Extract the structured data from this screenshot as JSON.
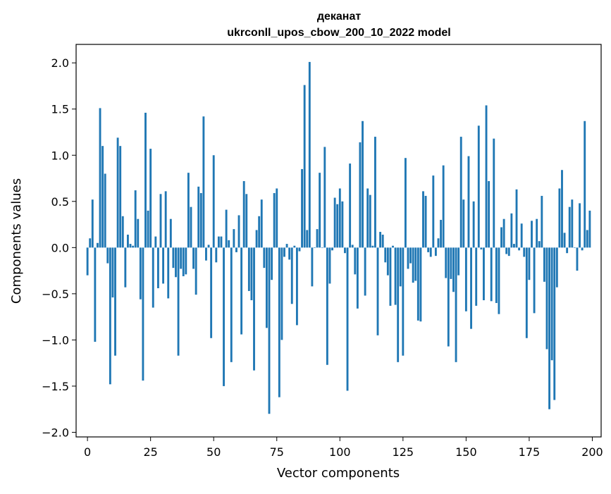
{
  "chart_data": {
    "type": "bar",
    "title": "деканат",
    "subtitle": "ukrconll_upos_cbow_200_10_2022 model",
    "xlabel": "Vector components",
    "ylabel": "Components values",
    "xlim": [
      -4.5,
      203.5
    ],
    "ylim": [
      -2.05,
      2.2
    ],
    "x_ticks": [
      0,
      25,
      50,
      75,
      100,
      125,
      150,
      175,
      200
    ],
    "x_tick_labels": [
      "0",
      "25",
      "50",
      "75",
      "100",
      "125",
      "150",
      "175",
      "200"
    ],
    "y_ticks": [
      -2.0,
      -1.5,
      -1.0,
      -0.5,
      0.0,
      0.5,
      1.0,
      1.5,
      2.0
    ],
    "y_tick_labels": [
      "−2.0",
      "−1.5",
      "−1.0",
      "−0.5",
      "0.0",
      "0.5",
      "1.0",
      "1.5",
      "2.0"
    ],
    "grid": false,
    "bar_color": "#1f77b4",
    "x": [
      0,
      1,
      2,
      3,
      4,
      5,
      6,
      7,
      8,
      9,
      10,
      11,
      12,
      13,
      14,
      15,
      16,
      17,
      18,
      19,
      20,
      21,
      22,
      23,
      24,
      25,
      26,
      27,
      28,
      29,
      30,
      31,
      32,
      33,
      34,
      35,
      36,
      37,
      38,
      39,
      40,
      41,
      42,
      43,
      44,
      45,
      46,
      47,
      48,
      49,
      50,
      51,
      52,
      53,
      54,
      55,
      56,
      57,
      58,
      59,
      60,
      61,
      62,
      63,
      64,
      65,
      66,
      67,
      68,
      69,
      70,
      71,
      72,
      73,
      74,
      75,
      76,
      77,
      78,
      79,
      80,
      81,
      82,
      83,
      84,
      85,
      86,
      87,
      88,
      89,
      90,
      91,
      92,
      93,
      94,
      95,
      96,
      97,
      98,
      99,
      100,
      101,
      102,
      103,
      104,
      105,
      106,
      107,
      108,
      109,
      110,
      111,
      112,
      113,
      114,
      115,
      116,
      117,
      118,
      119,
      120,
      121,
      122,
      123,
      124,
      125,
      126,
      127,
      128,
      129,
      130,
      131,
      132,
      133,
      134,
      135,
      136,
      137,
      138,
      139,
      140,
      141,
      142,
      143,
      144,
      145,
      146,
      147,
      148,
      149,
      150,
      151,
      152,
      153,
      154,
      155,
      156,
      157,
      158,
      159,
      160,
      161,
      162,
      163,
      164,
      165,
      166,
      167,
      168,
      169,
      170,
      171,
      172,
      173,
      174,
      175,
      176,
      177,
      178,
      179,
      180,
      181,
      182,
      183,
      184,
      185,
      186,
      187,
      188,
      189,
      190,
      191,
      192,
      193,
      194,
      195,
      196,
      197,
      198,
      199
    ],
    "values": [
      -0.3,
      0.1,
      0.52,
      -1.02,
      0.05,
      1.51,
      1.1,
      0.8,
      -0.17,
      -1.48,
      -0.54,
      -1.17,
      1.19,
      1.1,
      0.34,
      -0.43,
      0.14,
      0.04,
      0.02,
      0.62,
      0.31,
      -0.56,
      -1.44,
      1.46,
      0.4,
      1.07,
      -0.65,
      0.12,
      -0.44,
      0.58,
      -0.39,
      0.61,
      -0.55,
      0.31,
      -0.22,
      -0.32,
      -1.17,
      -0.23,
      -0.31,
      -0.29,
      0.81,
      0.44,
      -0.23,
      -0.51,
      0.66,
      0.59,
      1.42,
      -0.14,
      0.03,
      -0.98,
      1.0,
      -0.16,
      0.12,
      0.12,
      -1.5,
      0.41,
      0.08,
      -1.24,
      0.2,
      -0.05,
      0.35,
      -0.94,
      0.72,
      0.58,
      -0.47,
      -0.57,
      -1.33,
      0.19,
      0.34,
      0.52,
      -0.22,
      -0.87,
      -1.8,
      -0.35,
      0.59,
      0.64,
      -1.62,
      -1.0,
      -0.1,
      0.04,
      -0.13,
      -0.61,
      0.02,
      -0.84,
      -0.04,
      0.85,
      1.76,
      0.19,
      2.01,
      -0.42,
      0.0,
      0.2,
      0.81,
      0.0,
      1.09,
      -1.27,
      -0.39,
      -0.03,
      0.54,
      0.47,
      0.64,
      0.5,
      -0.06,
      -1.55,
      0.91,
      0.03,
      -0.29,
      -0.66,
      1.14,
      1.37,
      -0.52,
      0.64,
      0.57,
      0.02,
      1.2,
      -0.95,
      0.17,
      0.14,
      -0.16,
      -0.3,
      -0.63,
      0.02,
      -0.62,
      -1.24,
      -0.42,
      -1.17,
      0.97,
      -0.23,
      -0.17,
      -0.38,
      -0.36,
      -0.79,
      -0.8,
      0.61,
      0.56,
      -0.05,
      -0.1,
      0.78,
      -0.09,
      0.1,
      0.3,
      0.89,
      -0.33,
      -1.07,
      -0.34,
      -0.48,
      -1.24,
      -0.3,
      1.2,
      0.52,
      -0.69,
      0.99,
      -0.88,
      0.5,
      -0.63,
      1.32,
      -0.02,
      -0.57,
      1.54,
      0.72,
      -0.58,
      1.18,
      -0.6,
      -0.72,
      0.22,
      0.31,
      -0.07,
      -0.09,
      0.37,
      0.04,
      0.63,
      -0.03,
      0.26,
      -0.1,
      -0.98,
      -0.35,
      0.29,
      -0.71,
      0.31,
      0.07,
      0.56,
      -0.37,
      -1.1,
      -1.75,
      -1.22,
      -1.65,
      -0.43,
      0.64,
      0.84,
      0.16,
      -0.06,
      0.44,
      0.52,
      0.0,
      -0.25,
      0.48,
      -0.03,
      1.37,
      0.19,
      0.4
    ]
  }
}
